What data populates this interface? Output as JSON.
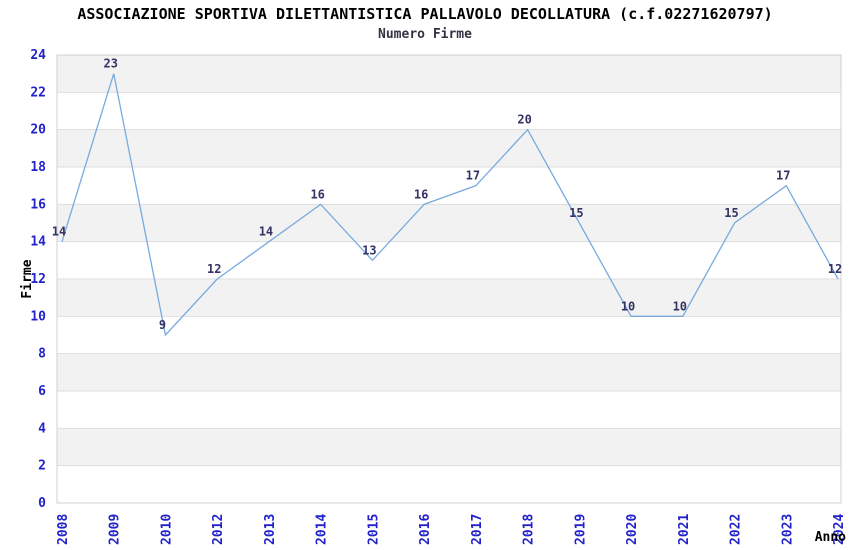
{
  "chart_data": {
    "type": "line",
    "title": "ASSOCIAZIONE SPORTIVA DILETTANTISTICA PALLAVOLO DECOLLATURA (c.f.02271620797)",
    "subtitle": "Numero Firme",
    "xlabel": "Anno",
    "ylabel": "Firme",
    "categories": [
      "2008",
      "2009",
      "2010",
      "2012",
      "2013",
      "2014",
      "2015",
      "2016",
      "2017",
      "2018",
      "2019",
      "2020",
      "2021",
      "2022",
      "2023",
      "2024"
    ],
    "values": [
      14,
      23,
      9,
      12,
      14,
      16,
      13,
      16,
      17,
      20,
      15,
      10,
      10,
      15,
      17,
      12
    ],
    "ylim": [
      0,
      24
    ],
    "ytick_step": 2,
    "grid": true,
    "legend": "none",
    "colors": {
      "line": "#79aade",
      "band_fill": "#f2f2f2",
      "gridline": "#dddddd",
      "plot_border": "#d0d0d0",
      "tick_label": "#2222cc",
      "point_label": "#333366",
      "title": "#000000",
      "subtitle": "#333344",
      "axis_title": "#000000",
      "background": "#ffffff"
    }
  }
}
